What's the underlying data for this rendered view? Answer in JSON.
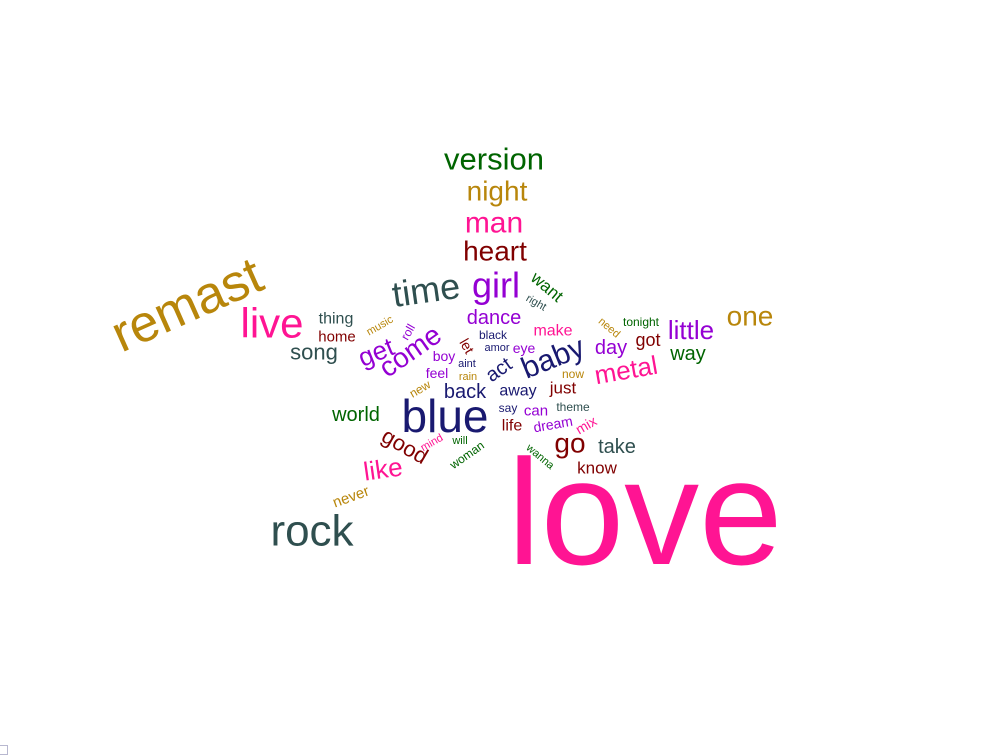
{
  "palette": {
    "pink": "#ff1493",
    "navy": "#191970",
    "gold": "#b8860b",
    "green": "#006400",
    "maroon": "#800000",
    "purple": "#9400d3",
    "slate": "#2f4f4f"
  },
  "words": [
    {
      "text": "love",
      "color": "pink"
    },
    {
      "text": "remast",
      "color": "gold"
    },
    {
      "text": "blue",
      "color": "navy"
    },
    {
      "text": "rock",
      "color": "slate"
    },
    {
      "text": "version",
      "color": "green"
    },
    {
      "text": "live",
      "color": "pink"
    },
    {
      "text": "time",
      "color": "slate"
    },
    {
      "text": "girl",
      "color": "purple"
    },
    {
      "text": "baby",
      "color": "navy"
    },
    {
      "text": "night",
      "color": "gold"
    },
    {
      "text": "man",
      "color": "pink"
    },
    {
      "text": "heart",
      "color": "maroon"
    },
    {
      "text": "one",
      "color": "gold"
    },
    {
      "text": "little",
      "color": "purple"
    },
    {
      "text": "metal",
      "color": "pink"
    },
    {
      "text": "come",
      "color": "purple"
    },
    {
      "text": "get",
      "color": "purple"
    },
    {
      "text": "song",
      "color": "slate"
    },
    {
      "text": "good",
      "color": "maroon"
    },
    {
      "text": "like",
      "color": "pink"
    },
    {
      "text": "go",
      "color": "maroon"
    },
    {
      "text": "take",
      "color": "slate"
    },
    {
      "text": "world",
      "color": "green"
    },
    {
      "text": "back",
      "color": "navy"
    },
    {
      "text": "dance",
      "color": "purple"
    },
    {
      "text": "day",
      "color": "purple"
    },
    {
      "text": "way",
      "color": "green"
    },
    {
      "text": "want",
      "color": "green"
    },
    {
      "text": "act",
      "color": "navy"
    },
    {
      "text": "thing",
      "color": "slate"
    },
    {
      "text": "home",
      "color": "maroon"
    },
    {
      "text": "got",
      "color": "maroon"
    },
    {
      "text": "make",
      "color": "pink"
    },
    {
      "text": "know",
      "color": "maroon"
    },
    {
      "text": "away",
      "color": "navy"
    },
    {
      "text": "just",
      "color": "maroon"
    },
    {
      "text": "never",
      "color": "gold"
    },
    {
      "text": "life",
      "color": "maroon"
    },
    {
      "text": "dream",
      "color": "purple"
    },
    {
      "text": "can",
      "color": "purple"
    },
    {
      "text": "feel",
      "color": "purple"
    },
    {
      "text": "boy",
      "color": "purple"
    },
    {
      "text": "eye",
      "color": "purple"
    },
    {
      "text": "mix",
      "color": "pink"
    },
    {
      "text": "let",
      "color": "maroon"
    },
    {
      "text": "woman",
      "color": "green"
    },
    {
      "text": "roll",
      "color": "purple"
    },
    {
      "text": "tonight",
      "color": "green"
    },
    {
      "text": "music",
      "color": "gold"
    },
    {
      "text": "need",
      "color": "gold"
    },
    {
      "text": "right",
      "color": "slate"
    },
    {
      "text": "black",
      "color": "navy"
    },
    {
      "text": "amor",
      "color": "navy"
    },
    {
      "text": "aint",
      "color": "navy"
    },
    {
      "text": "rain",
      "color": "gold"
    },
    {
      "text": "now",
      "color": "gold"
    },
    {
      "text": "new",
      "color": "gold"
    },
    {
      "text": "say",
      "color": "navy"
    },
    {
      "text": "theme",
      "color": "slate"
    },
    {
      "text": "mind",
      "color": "pink"
    },
    {
      "text": "will",
      "color": "green"
    },
    {
      "text": "wanna",
      "color": "green"
    }
  ]
}
